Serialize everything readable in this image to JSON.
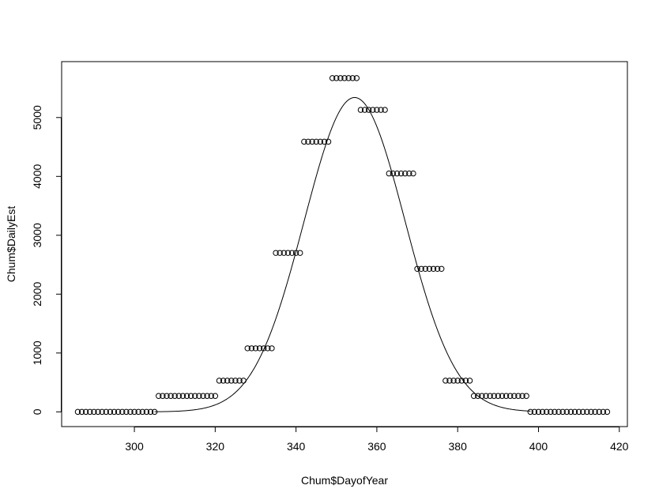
{
  "chart_data": {
    "type": "scatter",
    "title": "",
    "xlabel": "Chum$DayofYear",
    "ylabel": "Chum$DailyEst",
    "xlim": [
      282,
      422
    ],
    "ylim": [
      -250,
      5950
    ],
    "x_ticks": [
      300,
      320,
      340,
      360,
      380,
      400,
      420
    ],
    "y_ticks": [
      0,
      1000,
      2000,
      3000,
      4000,
      5000
    ],
    "grid": false,
    "legend": "none",
    "point_groups": [
      {
        "x_start": 286,
        "x_end": 305,
        "y": 0
      },
      {
        "x_start": 306,
        "x_end": 320,
        "y": 270
      },
      {
        "x_start": 321,
        "x_end": 327,
        "y": 530
      },
      {
        "x_start": 328,
        "x_end": 334,
        "y": 1080
      },
      {
        "x_start": 335,
        "x_end": 341,
        "y": 2700
      },
      {
        "x_start": 342,
        "x_end": 348,
        "y": 4590
      },
      {
        "x_start": 349,
        "x_end": 355,
        "y": 5670
      },
      {
        "x_start": 356,
        "x_end": 362,
        "y": 5130
      },
      {
        "x_start": 363,
        "x_end": 369,
        "y": 4050
      },
      {
        "x_start": 370,
        "x_end": 376,
        "y": 2430
      },
      {
        "x_start": 377,
        "x_end": 383,
        "y": 530
      },
      {
        "x_start": 384,
        "x_end": 397,
        "y": 270
      },
      {
        "x_start": 398,
        "x_end": 417,
        "y": 0
      }
    ],
    "fitted_curve": {
      "type": "gaussian",
      "amplitude": 5340,
      "mean": 354.5,
      "sd": 12.5,
      "x_range": [
        305,
        398
      ]
    },
    "colors": {
      "points": "#000000",
      "line": "#000000",
      "axes": "#000000"
    }
  }
}
